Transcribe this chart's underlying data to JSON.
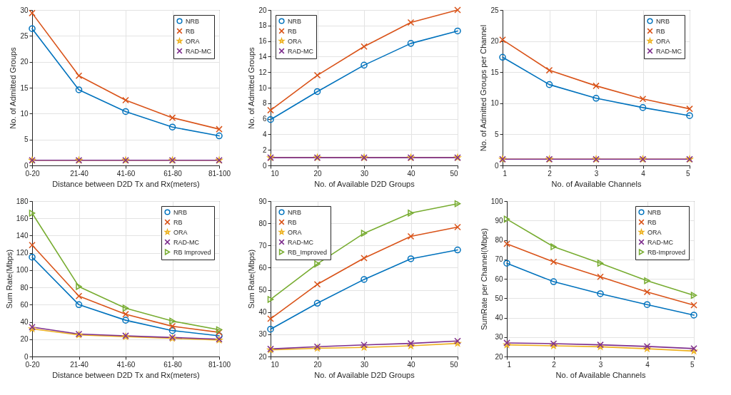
{
  "chart_data": [
    {
      "type": "line",
      "xlabel": "Distance between D2D Tx and Rx(meters)",
      "ylabel": "No. of Admitted Groups",
      "categories": [
        "0-20",
        "21-40",
        "41-60",
        "61-80",
        "81-100"
      ],
      "ylim": [
        0,
        30
      ],
      "yticks": [
        0,
        5,
        10,
        15,
        20,
        25,
        30
      ],
      "grid": true,
      "legend": "top right",
      "line_style": "solid",
      "series": [
        {
          "name": "NRB",
          "color": "#0072bd",
          "marker": "circle",
          "values": [
            26.4,
            14.6,
            10.4,
            7.4,
            5.7
          ]
        },
        {
          "name": "RB",
          "color": "#d95319",
          "marker": "cross",
          "values": [
            29.4,
            17.3,
            12.6,
            9.2,
            7.0
          ]
        },
        {
          "name": "ORA",
          "color": "#edb120",
          "marker": "star",
          "values": [
            1,
            1,
            1,
            1,
            1
          ]
        },
        {
          "name": "RAD-MC",
          "color": "#7e2f8e",
          "marker": "cross",
          "values": [
            1,
            1,
            1,
            1,
            1
          ]
        }
      ]
    },
    {
      "type": "line",
      "xlabel": "No. of Available D2D Groups",
      "ylabel": "No. of Admitted Groups",
      "x": [
        10,
        20,
        30,
        40,
        50
      ],
      "xlim": [
        10,
        50
      ],
      "xticks": [
        10,
        20,
        30,
        40,
        50
      ],
      "ylim": [
        0,
        20
      ],
      "yticks": [
        0,
        2,
        4,
        6,
        8,
        10,
        12,
        14,
        16,
        18,
        20
      ],
      "grid": true,
      "legend": "top left",
      "line_style": "solid",
      "series": [
        {
          "name": "NRB",
          "color": "#0072bd",
          "marker": "circle",
          "values": [
            5.9,
            9.5,
            12.9,
            15.7,
            17.3
          ]
        },
        {
          "name": "RB",
          "color": "#d95319",
          "marker": "cross",
          "values": [
            7.1,
            11.6,
            15.3,
            18.4,
            20
          ]
        },
        {
          "name": "ORA",
          "color": "#edb120",
          "marker": "star",
          "values": [
            1,
            1,
            1,
            1,
            1
          ]
        },
        {
          "name": "RAD-MC",
          "color": "#7e2f8e",
          "marker": "cross",
          "values": [
            1,
            1,
            1,
            1,
            1
          ]
        }
      ]
    },
    {
      "type": "line",
      "xlabel": "No. of Available Channels",
      "ylabel": "No. of Admitted Groups per Channel",
      "x": [
        1,
        2,
        3,
        4,
        5
      ],
      "xlim": [
        1,
        5
      ],
      "xticks": [
        1,
        2,
        3,
        4,
        5
      ],
      "ylim": [
        0,
        25
      ],
      "yticks": [
        0,
        5,
        10,
        15,
        20,
        25
      ],
      "grid": true,
      "legend": "top right",
      "line_style": "solid",
      "series": [
        {
          "name": "NRB",
          "color": "#0072bd",
          "marker": "circle",
          "values": [
            17.4,
            13.0,
            10.8,
            9.3,
            8.0
          ]
        },
        {
          "name": "RB",
          "color": "#d95319",
          "marker": "cross",
          "values": [
            20.2,
            15.3,
            12.8,
            10.7,
            9.1
          ]
        },
        {
          "name": "ORA",
          "color": "#edb120",
          "marker": "star",
          "values": [
            1,
            1,
            1,
            1,
            1
          ]
        },
        {
          "name": "RAD-MC",
          "color": "#7e2f8e",
          "marker": "cross",
          "values": [
            1,
            1,
            1,
            1,
            1
          ]
        }
      ]
    },
    {
      "type": "line",
      "xlabel": "Distance between D2D Tx and Rx(meters)",
      "ylabel": "Sum Rate(Mbps)",
      "categories": [
        "0-20",
        "21-40",
        "41-60",
        "61-80",
        "81-100"
      ],
      "ylim": [
        0,
        180
      ],
      "yticks": [
        0,
        20,
        40,
        60,
        80,
        100,
        120,
        140,
        160,
        180
      ],
      "grid": true,
      "legend": "top right",
      "line_style": "solid",
      "series": [
        {
          "name": "NRB",
          "color": "#0072bd",
          "marker": "circle",
          "values": [
            115,
            60,
            42,
            30,
            24
          ]
        },
        {
          "name": "RB",
          "color": "#d95319",
          "marker": "cross",
          "values": [
            129,
            70,
            49,
            35,
            28
          ]
        },
        {
          "name": "ORA",
          "color": "#edb120",
          "marker": "star",
          "values": [
            32,
            25,
            23,
            21,
            19
          ]
        },
        {
          "name": "RAD-MC",
          "color": "#7e2f8e",
          "marker": "cross",
          "values": [
            34,
            26,
            24,
            22,
            20
          ]
        },
        {
          "name": "RB Improved",
          "color": "#77ac30",
          "marker": "triangle",
          "values": [
            166,
            81,
            56,
            41,
            31
          ]
        }
      ]
    },
    {
      "type": "line",
      "xlabel": "No. of Available D2D Groups",
      "ylabel": "Sum Rate(Mbps)",
      "x": [
        10,
        20,
        30,
        40,
        50
      ],
      "xlim": [
        10,
        50
      ],
      "xticks": [
        10,
        20,
        30,
        40,
        50
      ],
      "ylim": [
        20,
        90
      ],
      "yticks": [
        20,
        30,
        40,
        50,
        60,
        70,
        80,
        90
      ],
      "grid": true,
      "legend": "top left",
      "line_style": "solid",
      "series": [
        {
          "name": "NRB",
          "color": "#0072bd",
          "marker": "circle",
          "values": [
            32.3,
            44,
            54.7,
            64,
            68
          ]
        },
        {
          "name": "RB",
          "color": "#d95319",
          "marker": "cross",
          "values": [
            37,
            52.5,
            64.3,
            74.1,
            78.3
          ]
        },
        {
          "name": "ORA",
          "color": "#edb120",
          "marker": "star",
          "values": [
            23,
            23.7,
            24.1,
            24.8,
            25.9
          ]
        },
        {
          "name": "RAD-MC",
          "color": "#7e2f8e",
          "marker": "cross",
          "values": [
            23.4,
            24.4,
            25.2,
            25.9,
            27.0
          ]
        },
        {
          "name": "RB_Improved",
          "color": "#77ac30",
          "marker": "triangle",
          "values": [
            45.7,
            61.7,
            75.5,
            84.6,
            88.8
          ]
        }
      ]
    },
    {
      "type": "line",
      "xlabel": "No. of Available Channels",
      "ylabel": "SumRate per Channel(Mbps)",
      "x": [
        1,
        2,
        3,
        4,
        5
      ],
      "xlim": [
        1,
        5
      ],
      "xticks": [
        1,
        2,
        3,
        4,
        5
      ],
      "ylim": [
        20,
        100
      ],
      "yticks": [
        20,
        30,
        40,
        50,
        60,
        70,
        80,
        90,
        100
      ],
      "grid": true,
      "legend": "top right",
      "line_style": "solid",
      "series": [
        {
          "name": "NRB",
          "color": "#0072bd",
          "marker": "circle",
          "values": [
            68,
            58.5,
            52.3,
            46.7,
            41.3
          ]
        },
        {
          "name": "RB",
          "color": "#d95319",
          "marker": "cross",
          "values": [
            78,
            68.7,
            61,
            53.2,
            46.4
          ]
        },
        {
          "name": "ORA",
          "color": "#edb120",
          "marker": "star",
          "values": [
            26,
            25.5,
            25,
            24,
            22.8
          ]
        },
        {
          "name": "RAD-MC",
          "color": "#7e2f8e",
          "marker": "cross",
          "values": [
            27,
            26.6,
            26,
            25.2,
            24.1
          ]
        },
        {
          "name": "RB-Improved",
          "color": "#77ac30",
          "marker": "triangle",
          "values": [
            90.7,
            76.5,
            68,
            59,
            51.5
          ]
        }
      ]
    }
  ]
}
